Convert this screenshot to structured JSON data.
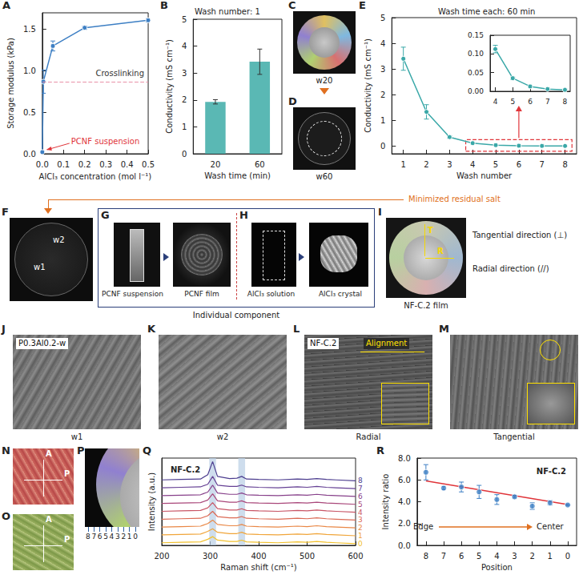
{
  "chart_data": [
    {
      "panel": "A",
      "type": "line",
      "xlabel": "AlCl₃ concentration (mol l⁻¹)",
      "ylabel": "Storage modulus (kPa)",
      "x": [
        0,
        0.005,
        0.05,
        0.2,
        0.5
      ],
      "values": [
        0.02,
        0.87,
        1.3,
        1.52,
        1.61
      ],
      "errors": [
        0.01,
        0.14,
        0.06,
        0.02,
        0.02
      ],
      "color": "#3d7fc4",
      "marker": "circle",
      "xlim": [
        0,
        0.5
      ],
      "xticks": [
        {
          "value": 0,
          "label": "0.0"
        },
        0.1,
        0.2,
        0.3,
        0.4,
        0.5
      ],
      "ylim": [
        0,
        1.7
      ],
      "yticks": [
        {
          "value": 0,
          "label": "0.0"
        },
        0.5,
        {
          "value": 1,
          "label": "1.0"
        },
        1.5
      ],
      "reference_line": {
        "value": 0.87,
        "label": "Crosslinking",
        "color": "#e891a8",
        "line_style": "dashed"
      },
      "annotations": [
        {
          "text": "PCNF suspension",
          "x": 0,
          "y": 0.02,
          "color": "#e0353a"
        }
      ]
    },
    {
      "panel": "B",
      "type": "bar",
      "title": "Wash number: 1",
      "xlabel": "Wash time (min)",
      "ylabel": "Conductivity (mS cm⁻¹)",
      "categories": [
        "20",
        "60"
      ],
      "values": [
        1.93,
        3.42
      ],
      "errors": [
        0.08,
        0.47
      ],
      "color": "#5ab8b4",
      "ylim": [
        0,
        5
      ],
      "yticks": [
        0,
        1,
        2,
        3,
        4,
        5
      ]
    },
    {
      "panel": "E",
      "type": "line",
      "title": "Wash time each: 60 min",
      "xlabel": "Wash number",
      "ylabel": "Conductivity (mS cm⁻¹)",
      "x": [
        1,
        2,
        3,
        4,
        5,
        6,
        7,
        8
      ],
      "values": [
        3.4,
        1.33,
        0.35,
        0.113,
        0.035,
        0.013,
        0.006,
        0.004
      ],
      "errors": [
        0.45,
        0.28,
        0.05,
        0.01,
        0.003,
        0.002,
        0.001,
        0.001
      ],
      "color": "#3aa8a8",
      "marker": "circle",
      "xlim": [
        0.5,
        8.5
      ],
      "xticks": [
        1,
        2,
        3,
        4,
        5,
        6,
        7,
        8
      ],
      "ylim": [
        -0.3,
        5
      ],
      "yticks": [
        0,
        1,
        2,
        3,
        4,
        5
      ],
      "highlight_box": {
        "x": [
          3.7,
          8.3
        ],
        "y": [
          -0.2,
          0.25
        ],
        "color": "#e0353a"
      },
      "inset": {
        "type": "line",
        "x": [
          4,
          5,
          6,
          7,
          8
        ],
        "values": [
          0.113,
          0.035,
          0.013,
          0.006,
          0.004
        ],
        "errors": [
          0.01,
          0.003,
          0.002,
          0.001,
          0.001
        ],
        "color": "#3aa8a8",
        "marker": "circle",
        "xlim": [
          3.7,
          8.3
        ],
        "xticks": [
          4,
          5,
          6,
          7,
          8
        ],
        "ylim": [
          0,
          0.15
        ],
        "yticks": [
          {
            "value": 0,
            "label": "0.00"
          },
          {
            "value": 0.05,
            "label": "0.05"
          },
          {
            "value": 0.1,
            "label": "0.10"
          },
          {
            "value": 0.15,
            "label": "0.15"
          }
        ]
      }
    },
    {
      "panel": "Q",
      "type": "line",
      "title": "NF-C.2",
      "xlabel": "Raman shift (cm⁻¹)",
      "ylabel": "Intensity (a.u.)",
      "x": [
        200,
        240,
        280,
        295,
        305,
        315,
        340,
        355,
        365,
        375,
        400,
        440,
        480,
        500,
        520,
        540,
        560,
        600
      ],
      "series": [
        {
          "name": "0",
          "color": "#f2c12e",
          "values": [
            0.3,
            0.35,
            0.4,
            0.7,
            1.0,
            0.6,
            0.45,
            0.45,
            0.6,
            0.4,
            0.35,
            0.3,
            0.4,
            0.35,
            0.45,
            0.35,
            0.3,
            0.2
          ]
        },
        {
          "name": "1",
          "color": "#f0a53a",
          "values": [
            1.2,
            1.25,
            1.3,
            1.6,
            1.9,
            1.5,
            1.35,
            1.35,
            1.5,
            1.3,
            1.25,
            1.2,
            1.3,
            1.25,
            1.35,
            1.25,
            1.2,
            1.1
          ]
        },
        {
          "name": "2",
          "color": "#e98745",
          "values": [
            2.1,
            2.15,
            2.2,
            2.5,
            2.9,
            2.4,
            2.25,
            2.25,
            2.4,
            2.2,
            2.15,
            2.1,
            2.2,
            2.15,
            2.25,
            2.15,
            2.1,
            2.0
          ]
        },
        {
          "name": "3",
          "color": "#db6a55",
          "values": [
            3.0,
            3.05,
            3.1,
            3.4,
            3.9,
            3.3,
            3.15,
            3.15,
            3.3,
            3.1,
            3.05,
            3.0,
            3.1,
            3.05,
            3.15,
            3.05,
            3.0,
            2.9
          ]
        },
        {
          "name": "4",
          "color": "#c85566",
          "values": [
            3.9,
            3.95,
            4.0,
            4.3,
            4.9,
            4.2,
            4.05,
            4.05,
            4.2,
            4.0,
            3.95,
            3.9,
            4.0,
            3.95,
            4.05,
            3.95,
            3.9,
            3.8
          ]
        },
        {
          "name": "5",
          "color": "#a9477a",
          "values": [
            4.8,
            4.85,
            4.9,
            5.2,
            5.9,
            5.1,
            4.95,
            4.95,
            5.1,
            4.9,
            4.85,
            4.8,
            4.9,
            4.85,
            4.95,
            4.85,
            4.8,
            4.7
          ]
        },
        {
          "name": "6",
          "color": "#87408a",
          "values": [
            5.7,
            5.75,
            5.8,
            6.1,
            6.9,
            6.0,
            5.85,
            5.85,
            6.0,
            5.8,
            5.75,
            5.7,
            5.8,
            5.75,
            5.85,
            5.75,
            5.7,
            5.6
          ]
        },
        {
          "name": "7",
          "color": "#654094",
          "values": [
            6.6,
            6.65,
            6.7,
            7.0,
            7.9,
            6.9,
            6.75,
            6.75,
            6.9,
            6.7,
            6.65,
            6.6,
            6.7,
            6.65,
            6.75,
            6.65,
            6.6,
            6.5
          ]
        },
        {
          "name": "8",
          "color": "#4c3d8f",
          "values": [
            7.5,
            7.55,
            7.6,
            8.1,
            9.6,
            7.9,
            7.65,
            7.7,
            7.9,
            7.6,
            7.55,
            7.5,
            7.6,
            7.55,
            7.65,
            7.55,
            7.5,
            7.4
          ]
        }
      ],
      "xlim": [
        200,
        600
      ],
      "xticks": [
        200,
        300,
        400,
        500,
        600
      ],
      "ylim": [
        0,
        10
      ],
      "yticks": [],
      "tick_labels": "x",
      "highlight_bands": {
        "ranges": [
          [
            298,
            312
          ],
          [
            358,
            372
          ]
        ],
        "color": "#b9cfe6"
      }
    },
    {
      "panel": "R",
      "type": "scatter",
      "title": "NF-C.2",
      "xlabel": "Position",
      "ylabel": "Intensity ratio",
      "x": [
        8,
        7,
        6,
        5,
        4,
        3,
        2,
        1,
        0
      ],
      "values": [
        6.7,
        5.25,
        5.35,
        4.9,
        4.2,
        4.45,
        3.6,
        3.9,
        3.7
      ],
      "errors": [
        0.7,
        0.15,
        0.45,
        0.6,
        0.45,
        0.1,
        0.3,
        0.2,
        0.05
      ],
      "color": "#3d7fc4",
      "marker": "circle",
      "xlim": [
        8.5,
        -0.5
      ],
      "xticks": [
        8,
        7,
        6,
        5,
        4,
        3,
        2,
        1,
        0
      ],
      "ylim": [
        0,
        8
      ],
      "yticks": [
        {
          "value": 0,
          "label": "0.0"
        },
        {
          "value": 2,
          "label": "2.0"
        },
        {
          "value": 4,
          "label": "4.0"
        },
        {
          "value": 6,
          "label": "6.0"
        },
        {
          "value": 8,
          "label": "8.0"
        }
      ],
      "trend": {
        "x": [
          8,
          0
        ],
        "values": [
          5.9,
          3.75
        ],
        "color": "#e0353a"
      },
      "annotations": [
        "Edge",
        "Center"
      ]
    }
  ],
  "images": {
    "C": {
      "letter": "C",
      "label": "w20"
    },
    "D": {
      "letter": "D",
      "label": "w60"
    },
    "F": {
      "letter": "F",
      "marks": [
        "w2",
        "w1"
      ]
    },
    "G": {
      "letter": "G",
      "items": [
        "PCNF suspension",
        "PCNF film"
      ]
    },
    "H": {
      "letter": "H",
      "items": [
        "AlCl₃ solution",
        "AlCl₃ crystal"
      ]
    },
    "group": "Individual component",
    "I": {
      "letter": "I",
      "caption": "NF-C.2 film",
      "marks": [
        "T",
        "R"
      ],
      "notes": [
        "Tangential direction (⊥)",
        "Radial direction (//)"
      ]
    },
    "J": {
      "letter": "J",
      "title": "P0.3Al0.2-w",
      "caption": "w1"
    },
    "K": {
      "letter": "K",
      "caption": "w2"
    },
    "L": {
      "letter": "L",
      "title": "NF-C.2",
      "note": "Alignment",
      "caption": "Radial"
    },
    "M": {
      "letter": "M",
      "caption": "Tangential"
    },
    "N": {
      "letter": "N",
      "marks": [
        "A",
        "P"
      ]
    },
    "O": {
      "letter": "O",
      "marks": [
        "A",
        "P"
      ]
    },
    "P": {
      "letter": "P",
      "marks": [
        "8",
        "7",
        "6",
        "5",
        "4",
        "3",
        "2",
        "1",
        "0"
      ]
    }
  },
  "annotations": {
    "text": "Minimized residual salt",
    "color": "#e07020"
  }
}
